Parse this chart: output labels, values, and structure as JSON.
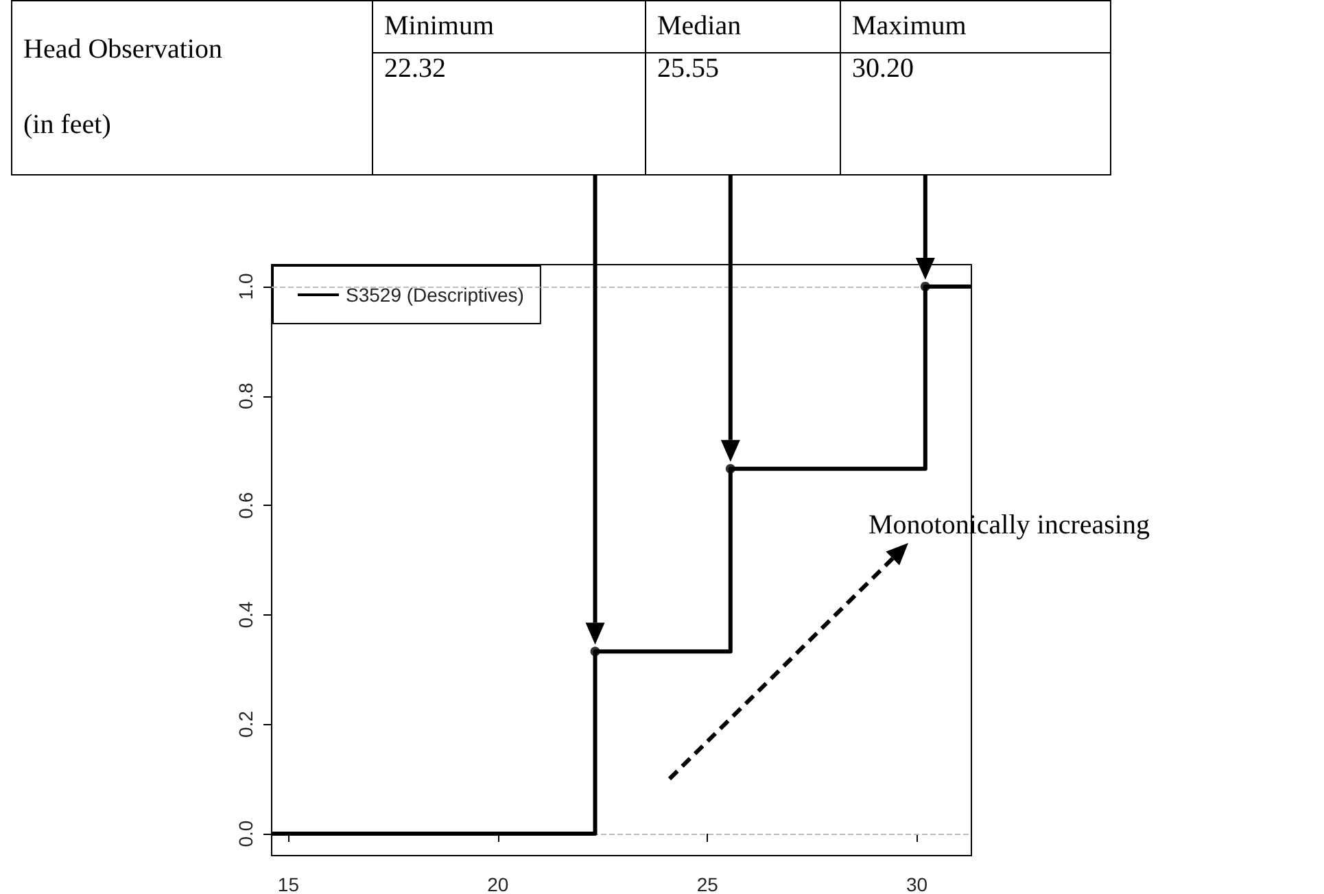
{
  "chart_data": {
    "type": "step",
    "annotations": [
      "Head Observation",
      "(in feet)",
      "Minimum",
      "Median",
      "Maximum",
      "22.32",
      "25.55",
      "30.20",
      "Monotonically increasing"
    ],
    "series": [
      {
        "name": "S3529 (Descriptives)",
        "color": "#000000",
        "marker": "none",
        "line_style": "solid",
        "x": [
          14.6,
          22.32,
          25.55,
          30.2,
          31.3
        ],
        "values": [
          0,
          0.333,
          0.667,
          1,
          1
        ]
      },
      {
        "type": "scatter",
        "color": "#000000",
        "marker": "circle",
        "x": [
          22.32,
          25.55,
          30.2
        ],
        "values": [
          0.333,
          0.667,
          1
        ]
      }
    ],
    "xlim": [
      14.6,
      31.3
    ],
    "ylim": [
      -0.04,
      1.04
    ],
    "xticks": [
      15,
      20,
      25,
      30
    ],
    "yticks": [
      {
        "value": 0,
        "label": "0.0"
      },
      0.2,
      0.4,
      0.6,
      0.8,
      {
        "value": 1,
        "label": "1.0"
      }
    ],
    "ref_lines": [
      {
        "axis": "y",
        "value": 0,
        "color": "#bbbbbb",
        "line_style": "dashed"
      },
      {
        "axis": "y",
        "value": 1,
        "color": "#bbbbbb",
        "line_style": "dashed"
      }
    ],
    "grid": false,
    "legend": "top left"
  }
}
